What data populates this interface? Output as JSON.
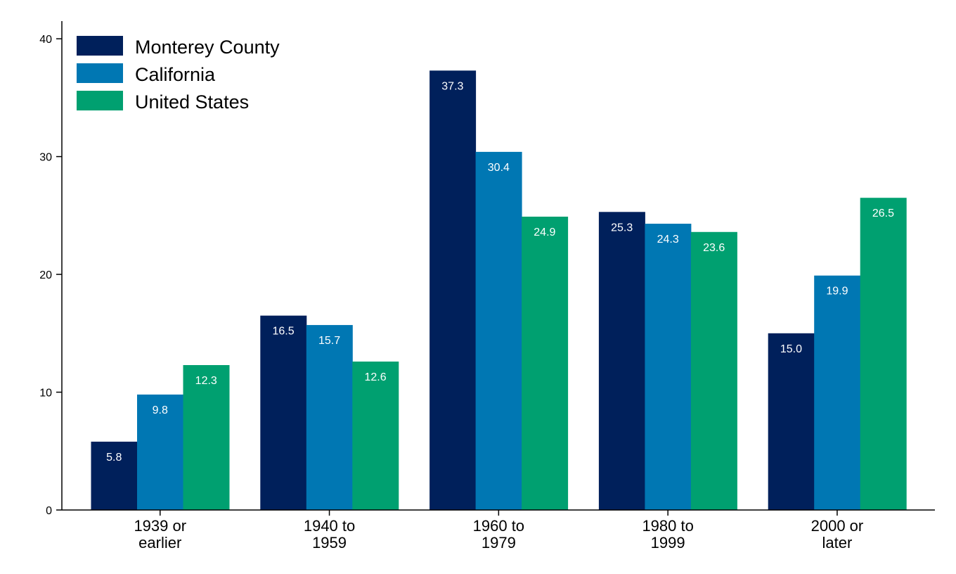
{
  "chart_data": {
    "type": "bar",
    "title": "",
    "xlabel": "",
    "ylabel": "",
    "categories": [
      [
        "1939 or",
        "earlier"
      ],
      [
        "1940 to",
        "1959"
      ],
      [
        "1960 to",
        "1979"
      ],
      [
        "1980 to",
        "1999"
      ],
      [
        "2000 or",
        "later"
      ]
    ],
    "series": [
      {
        "name": "Monterey County",
        "color": "#00205b",
        "values": [
          5.8,
          16.5,
          37.3,
          25.3,
          15.0
        ],
        "labels": [
          "5.8",
          "16.5",
          "37.3",
          "25.3",
          "15.0"
        ]
      },
      {
        "name": "California",
        "color": "#0077b3",
        "values": [
          9.8,
          15.7,
          30.4,
          24.3,
          19.9
        ],
        "labels": [
          "9.8",
          "15.7",
          "30.4",
          "24.3",
          "19.9"
        ]
      },
      {
        "name": "United States",
        "color": "#00a070",
        "values": [
          12.3,
          12.6,
          24.9,
          23.6,
          26.5
        ],
        "labels": [
          "12.3",
          "12.6",
          "24.9",
          "23.6",
          "26.5"
        ]
      }
    ],
    "ylim": [
      0,
      41.5
    ],
    "yticks": [
      0,
      10,
      20,
      30,
      40
    ],
    "ytick_labels": [
      "0",
      "10",
      "20",
      "30",
      "40"
    ],
    "grid": false,
    "legend_position": "top-left"
  }
}
